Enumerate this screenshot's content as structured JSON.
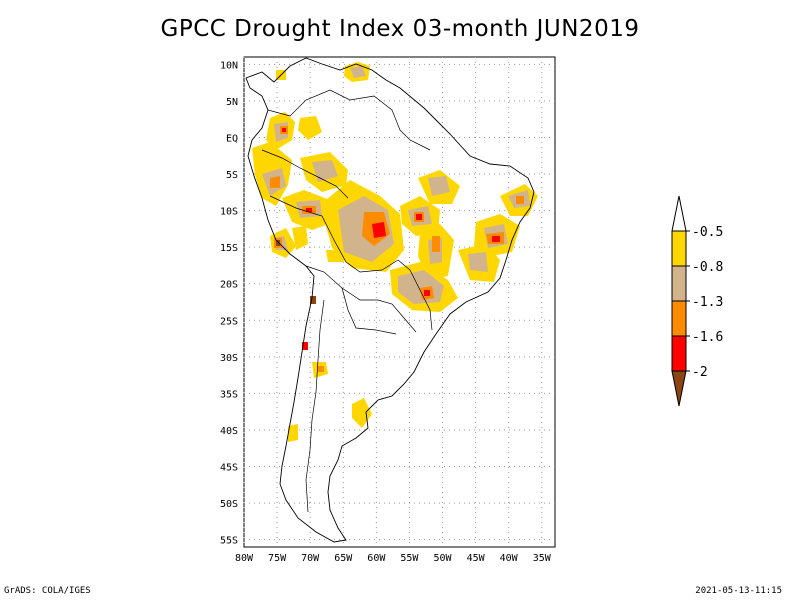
{
  "title": "GPCC Drought Index 03-month JUN2019",
  "map": {
    "lat_labels": [
      "10N",
      "5N",
      "EQ",
      "5S",
      "10S",
      "15S",
      "20S",
      "25S",
      "30S",
      "35S",
      "40S",
      "45S",
      "50S",
      "55S"
    ],
    "lon_labels": [
      "80W",
      "75W",
      "70W",
      "65W",
      "60W",
      "55W",
      "50W",
      "45W",
      "40W",
      "35W"
    ],
    "extent": {
      "lon_min": -80,
      "lon_max": -33,
      "lat_min": -56,
      "lat_max": 11
    },
    "colors": {
      "land_outline": "#000000",
      "grid": "#9a9a9a"
    }
  },
  "legend": {
    "bins": [
      {
        "color": "#ffffff"
      },
      {
        "color": "#ffd700"
      },
      {
        "color": "#d2b48c"
      },
      {
        "color": "#ff8c00"
      },
      {
        "color": "#ff0000"
      },
      {
        "color": "#8b4513"
      }
    ],
    "labels": [
      "-0.5",
      "-0.8",
      "-1.3",
      "-1.6",
      "-2"
    ]
  },
  "footer": {
    "left": "GrADS: COLA/IGES",
    "right": "2021-05-13-11:15"
  }
}
